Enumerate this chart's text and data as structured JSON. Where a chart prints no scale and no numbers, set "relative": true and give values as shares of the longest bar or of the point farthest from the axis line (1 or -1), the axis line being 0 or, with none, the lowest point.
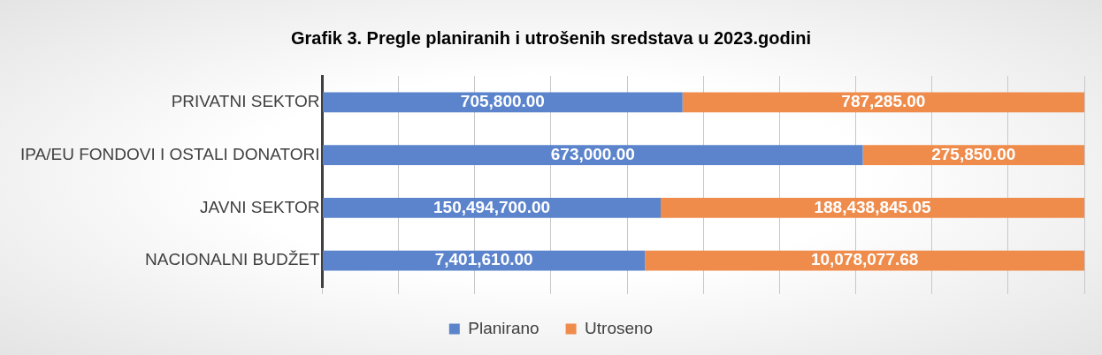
{
  "chart_data": {
    "type": "bar",
    "title": "Grafik 3. Pregle planiranih i utrošenih sredstava u 2023.godini",
    "orientation": "horizontal",
    "stacked": true,
    "relative": true,
    "grid": "x",
    "legend": "bottom",
    "categories": [
      "PRIVATNI SEKTOR",
      "IPA/EU FONDOVI I OSTALI DONATORI",
      "JAVNI SEKTOR",
      "NACIONALNI BUDŽET"
    ],
    "series": [
      {
        "name": "Planirano",
        "color": "#5b84cc",
        "values": [
          0.4727,
          0.7093,
          0.444,
          0.4234
        ]
      },
      {
        "name": "Utroseno",
        "color": "#ef8c4c",
        "values": [
          0.5273,
          0.2907,
          0.556,
          0.5766
        ]
      }
    ],
    "annotations": [
      "705,800.00",
      "787,285.00",
      "673,000.00",
      "275,850.00",
      "150,494,700.00",
      "188,438,845.05",
      "7,401,610.00",
      "10,078,077.68"
    ]
  }
}
